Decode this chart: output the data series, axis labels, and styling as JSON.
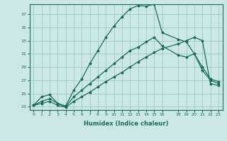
{
  "xlabel": "Humidex (Indice chaleur)",
  "bg_color": "#cce8e5",
  "grid_color": "#99ccc8",
  "line_color": "#1a6b5e",
  "xlim": [
    -0.5,
    23.5
  ],
  "ylim": [
    22.5,
    38.5
  ],
  "xticks": [
    0,
    1,
    2,
    3,
    4,
    5,
    6,
    7,
    8,
    9,
    10,
    11,
    12,
    13,
    14,
    15,
    16,
    18,
    19,
    20,
    21,
    22,
    23
  ],
  "yticks": [
    23,
    25,
    27,
    29,
    31,
    33,
    35,
    37
  ],
  "curve1_x": [
    0,
    1,
    2,
    3,
    4,
    5,
    6,
    7,
    8,
    9,
    10,
    11,
    12,
    13,
    14,
    15,
    16,
    18,
    19,
    20,
    21,
    22,
    23
  ],
  "curve1_y": [
    23.2,
    24.5,
    24.8,
    23.5,
    23.1,
    25.5,
    27.2,
    29.5,
    31.5,
    33.5,
    35.2,
    36.6,
    37.8,
    38.3,
    38.2,
    38.5,
    34.2,
    33.2,
    32.8,
    31.0,
    28.5,
    27.0,
    26.5
  ],
  "curve2_x": [
    0,
    1,
    2,
    3,
    4,
    5,
    6,
    7,
    8,
    9,
    10,
    11,
    12,
    13,
    14,
    15,
    16,
    18,
    19,
    20,
    21,
    22,
    23
  ],
  "curve2_y": [
    23.2,
    23.8,
    24.2,
    23.5,
    23.0,
    24.5,
    25.5,
    26.5,
    27.5,
    28.5,
    29.5,
    30.5,
    31.5,
    32.0,
    32.8,
    33.5,
    32.2,
    30.8,
    30.5,
    31.0,
    29.0,
    27.2,
    26.8
  ],
  "curve3_x": [
    0,
    1,
    2,
    3,
    4,
    5,
    6,
    7,
    8,
    9,
    10,
    11,
    12,
    13,
    14,
    15,
    16,
    18,
    19,
    20,
    21,
    22,
    23
  ],
  "curve3_y": [
    23.2,
    23.5,
    23.8,
    23.2,
    22.9,
    23.8,
    24.5,
    25.2,
    26.0,
    26.8,
    27.5,
    28.2,
    29.0,
    29.8,
    30.5,
    31.2,
    31.8,
    32.5,
    33.0,
    33.5,
    33.0,
    26.5,
    26.2
  ]
}
